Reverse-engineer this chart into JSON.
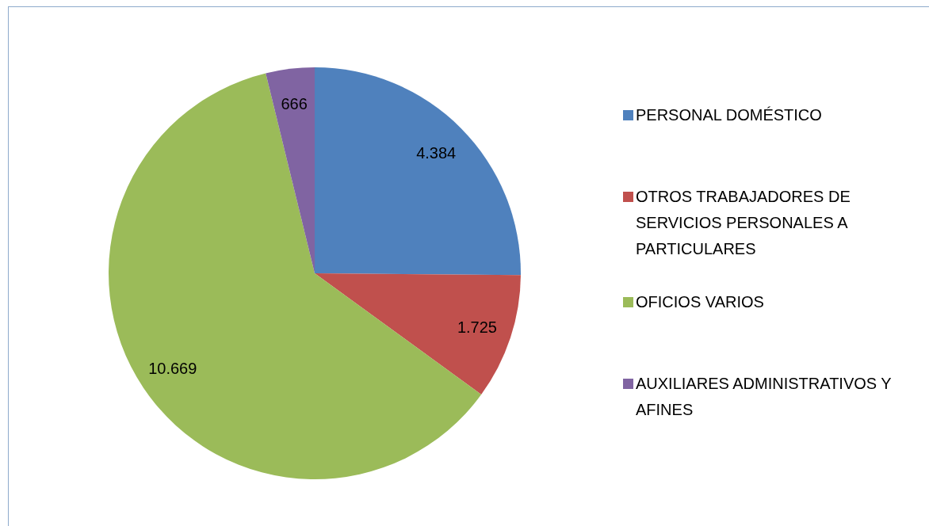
{
  "chart_data": {
    "type": "pie",
    "categories": [
      "PERSONAL DOMÉSTICO",
      "OTROS TRABAJADORES DE SERVICIOS PERSONALES A PARTICULARES",
      "OFICIOS VARIOS",
      "AUXILIARES ADMINISTRATIVOS Y AFINES"
    ],
    "values": [
      4384,
      1725,
      10669,
      666
    ],
    "value_labels": [
      "4.384",
      "1.725",
      "10.669",
      "666"
    ],
    "colors": [
      "#4f81bd",
      "#c0504d",
      "#9bbb59",
      "#8064a2"
    ],
    "legend": "right"
  }
}
